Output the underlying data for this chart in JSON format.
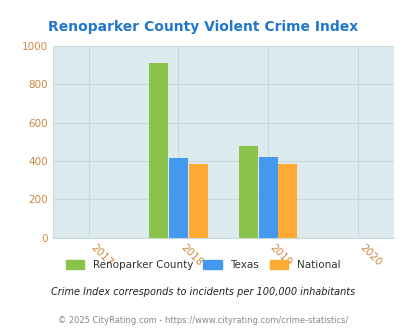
{
  "title": "Renoparker County Violent Crime Index",
  "title_color": "#2277cc",
  "years": [
    2017,
    2018,
    2019,
    2020
  ],
  "bar_groups": {
    "2018": {
      "Renoparker County": 910,
      "Texas": 415,
      "National": 383
    },
    "2019": {
      "Renoparker County": 480,
      "Texas": 420,
      "National": 383
    }
  },
  "colors": {
    "Renoparker County": "#8bc34a",
    "Texas": "#4499ee",
    "National": "#ffaa33"
  },
  "ylim": [
    0,
    1000
  ],
  "yticks": [
    0,
    200,
    400,
    600,
    800,
    1000
  ],
  "bg_color": "#ddeaee",
  "fig_bg_color": "#ffffff",
  "legend_labels": [
    "Renoparker County",
    "Texas",
    "National"
  ],
  "footnote1": "Crime Index corresponds to incidents per 100,000 inhabitants",
  "footnote2": "© 2025 CityRating.com - https://www.cityrating.com/crime-statistics/",
  "footnote1_color": "#222222",
  "footnote2_color": "#888888",
  "bar_width": 0.22,
  "group_centers": [
    2018,
    2019
  ],
  "tick_color": "#cc8844",
  "grid_color": "#c8d8dc"
}
